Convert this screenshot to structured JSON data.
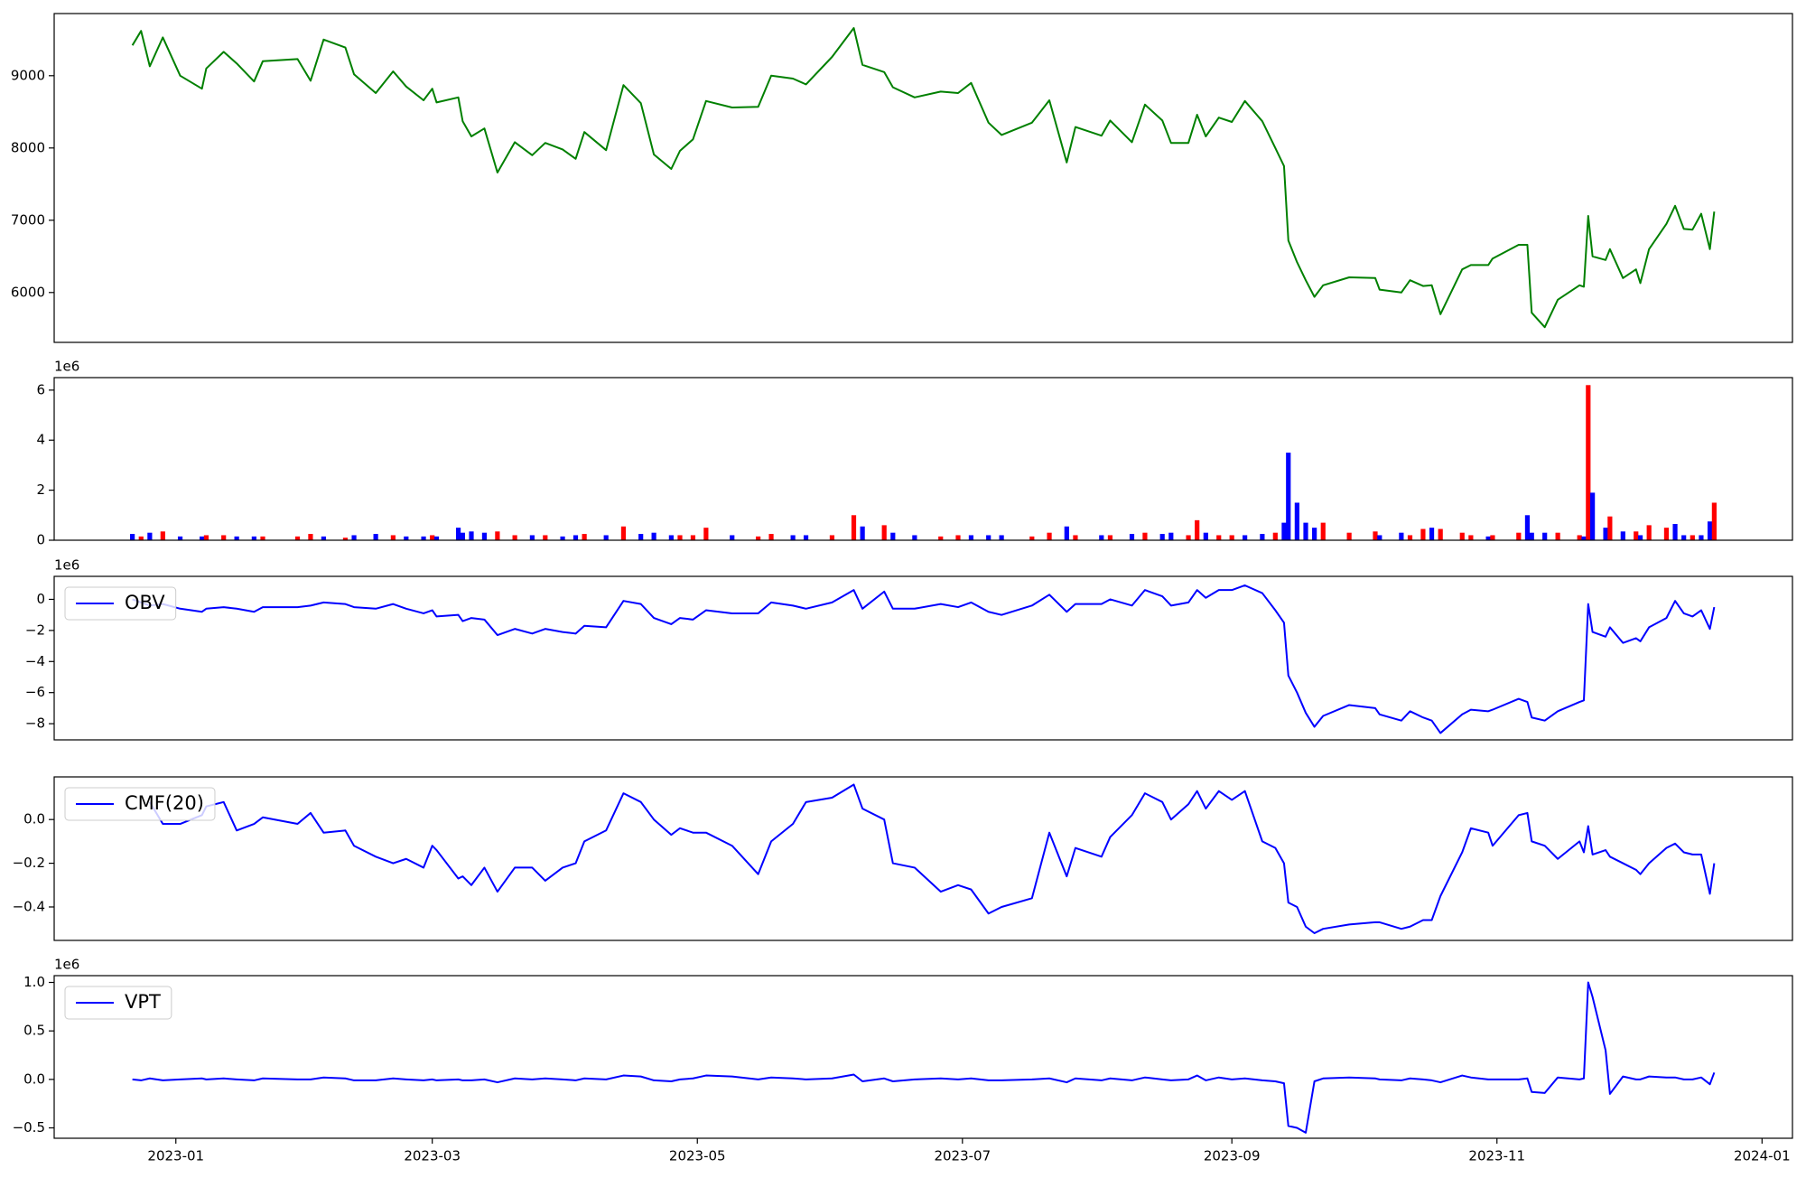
{
  "chart_data": {
    "type": "panels",
    "x": [
      "2022-12-22",
      "2022-12-24",
      "2022-12-26",
      "2022-12-29",
      "2023-01-02",
      "2023-01-07",
      "2023-01-08",
      "2023-01-12",
      "2023-01-15",
      "2023-01-19",
      "2023-01-21",
      "2023-01-29",
      "2023-02-01",
      "2023-02-04",
      "2023-02-09",
      "2023-02-11",
      "2023-02-16",
      "2023-02-20",
      "2023-02-23",
      "2023-02-27",
      "2023-03-01",
      "2023-03-02",
      "2023-03-07",
      "2023-03-08",
      "2023-03-10",
      "2023-03-13",
      "2023-03-16",
      "2023-03-20",
      "2023-03-24",
      "2023-03-27",
      "2023-03-31",
      "2023-04-03",
      "2023-04-05",
      "2023-04-10",
      "2023-04-14",
      "2023-04-18",
      "2023-04-21",
      "2023-04-25",
      "2023-04-27",
      "2023-04-30",
      "2023-05-03",
      "2023-05-09",
      "2023-05-15",
      "2023-05-18",
      "2023-05-23",
      "2023-05-26",
      "2023-06-01",
      "2023-06-06",
      "2023-06-08",
      "2023-06-13",
      "2023-06-15",
      "2023-06-20",
      "2023-06-26",
      "2023-06-30",
      "2023-07-03",
      "2023-07-07",
      "2023-07-10",
      "2023-07-17",
      "2023-07-21",
      "2023-07-25",
      "2023-07-27",
      "2023-08-02",
      "2023-08-04",
      "2023-08-09",
      "2023-08-12",
      "2023-08-16",
      "2023-08-18",
      "2023-08-22",
      "2023-08-24",
      "2023-08-26",
      "2023-08-29",
      "2023-09-01",
      "2023-09-04",
      "2023-09-08",
      "2023-09-11",
      "2023-09-13",
      "2023-09-14",
      "2023-09-16",
      "2023-09-18",
      "2023-09-20",
      "2023-09-22",
      "2023-09-28",
      "2023-10-04",
      "2023-10-05",
      "2023-10-10",
      "2023-10-12",
      "2023-10-15",
      "2023-10-17",
      "2023-10-19",
      "2023-10-24",
      "2023-10-26",
      "2023-10-30",
      "2023-10-31",
      "2023-11-06",
      "2023-11-08",
      "2023-11-09",
      "2023-11-12",
      "2023-11-15",
      "2023-11-20",
      "2023-11-21",
      "2023-11-22",
      "2023-11-23",
      "2023-11-26",
      "2023-11-27",
      "2023-11-30",
      "2023-12-03",
      "2023-12-04",
      "2023-12-06",
      "2023-12-10",
      "2023-12-12",
      "2023-12-14",
      "2023-12-16",
      "2023-12-18",
      "2023-12-20",
      "2023-12-21"
    ],
    "xlim": [
      "2022-12-04",
      "2024-01-08"
    ],
    "xticks": [
      "2023-01",
      "2023-03",
      "2023-05",
      "2023-07",
      "2023-09",
      "2023-11",
      "2024-01"
    ],
    "panels": [
      {
        "type": "line",
        "ylim": [
          5310,
          9860
        ],
        "yticks": [
          6000,
          7000,
          8000,
          9000
        ],
        "series": [
          {
            "color": "green",
            "values": [
              9420,
              9620,
              9130,
              9530,
              9000,
              8820,
              9100,
              9330,
              9170,
              8920,
              9200,
              9230,
              8930,
              9500,
              9390,
              9020,
              8760,
              9060,
              8850,
              8660,
              8820,
              8630,
              8700,
              8370,
              8160,
              8270,
              7660,
              8080,
              7900,
              8070,
              7980,
              7850,
              8220,
              7970,
              8870,
              8620,
              7910,
              7710,
              7960,
              8120,
              8650,
              8560,
              8570,
              9000,
              8960,
              8880,
              9260,
              9660,
              9150,
              9050,
              8840,
              8700,
              8780,
              8760,
              8900,
              8350,
              8180,
              8350,
              8660,
              7800,
              8290,
              8170,
              8380,
              8080,
              8600,
              8380,
              8070,
              8070,
              8460,
              8160,
              8420,
              8360,
              8650,
              8370,
              8000,
              7750,
              6720,
              6420,
              6170,
              5940,
              6100,
              6210,
              6200,
              6040,
              6000,
              6170,
              6090,
              6100,
              5700,
              6320,
              6380,
              6380,
              6470,
              6660,
              6660,
              5720,
              5520,
              5900,
              6100,
              6080,
              7060,
              6500,
              6450,
              6600,
              6200,
              6320,
              6130,
              6600,
              6950,
              7200,
              6880,
              6870,
              7090,
              6600,
              7120
            ]
          }
        ]
      },
      {
        "type": "bar",
        "offset_label": "1e6",
        "ylim": [
          0,
          6.5
        ],
        "yticks": [
          0,
          2,
          4,
          6
        ],
        "values": [
          0.25,
          0.15,
          0.3,
          0.35,
          0.15,
          0.15,
          0.2,
          0.2,
          0.15,
          0.15,
          0.15,
          0.15,
          0.25,
          0.15,
          0.1,
          0.2,
          0.25,
          0.2,
          0.15,
          0.15,
          0.2,
          0.15,
          0.5,
          0.3,
          0.35,
          0.3,
          0.35,
          0.2,
          0.2,
          0.2,
          0.15,
          0.2,
          0.25,
          0.2,
          0.55,
          0.25,
          0.3,
          0.2,
          0.2,
          0.2,
          0.5,
          0.2,
          0.15,
          0.25,
          0.2,
          0.2,
          0.2,
          1.0,
          0.55,
          0.6,
          0.3,
          0.2,
          0.15,
          0.2,
          0.2,
          0.2,
          0.2,
          0.15,
          0.3,
          0.55,
          0.2,
          0.2,
          0.2,
          0.25,
          0.3,
          0.25,
          0.3,
          0.2,
          0.8,
          0.3,
          0.2,
          0.2,
          0.2,
          0.25,
          0.3,
          0.7,
          3.5,
          1.5,
          0.7,
          0.5,
          0.7,
          0.3,
          0.35,
          0.2,
          0.3,
          0.2,
          0.45,
          0.5,
          0.45,
          0.3,
          0.2,
          0.15,
          0.2,
          0.3,
          1.0,
          0.3,
          0.3,
          0.3,
          0.2,
          0.15,
          6.2,
          1.9,
          0.5,
          0.95,
          0.35,
          0.35,
          0.2,
          0.6,
          0.5,
          0.65,
          0.2,
          0.2,
          0.2,
          0.75,
          1.5
        ],
        "colors": [
          "blue",
          "red",
          "blue",
          "red",
          "blue",
          "blue",
          "red",
          "red",
          "blue",
          "blue",
          "red",
          "red",
          "red",
          "blue",
          "red",
          "blue",
          "blue",
          "red",
          "blue",
          "blue",
          "red",
          "blue",
          "blue",
          "blue",
          "blue",
          "blue",
          "red",
          "red",
          "blue",
          "red",
          "blue",
          "blue",
          "red",
          "blue",
          "red",
          "blue",
          "blue",
          "blue",
          "red",
          "red",
          "red",
          "blue",
          "red",
          "red",
          "blue",
          "blue",
          "red",
          "red",
          "blue",
          "red",
          "blue",
          "blue",
          "red",
          "red",
          "blue",
          "blue",
          "blue",
          "red",
          "red",
          "blue",
          "red",
          "blue",
          "red",
          "blue",
          "red",
          "blue",
          "blue",
          "red",
          "red",
          "blue",
          "red",
          "red",
          "blue",
          "blue",
          "red",
          "blue",
          "blue",
          "blue",
          "blue",
          "blue",
          "red",
          "red",
          "red",
          "blue",
          "blue",
          "red",
          "red",
          "blue",
          "red",
          "red",
          "red",
          "blue",
          "red",
          "red",
          "blue",
          "blue",
          "blue",
          "red",
          "red",
          "blue",
          "red",
          "blue",
          "blue",
          "red",
          "blue",
          "red",
          "blue",
          "red",
          "red",
          "blue",
          "blue",
          "red",
          "blue",
          "blue",
          "red"
        ]
      },
      {
        "type": "line",
        "offset_label": "1e6",
        "legend": "upper left",
        "ylim": [
          -9.04,
          1.48
        ],
        "yticks": [
          {
            "value": -8,
            "label": "−8"
          },
          {
            "value": -6,
            "label": "−6"
          },
          {
            "value": -4,
            "label": "−4"
          },
          {
            "value": -2,
            "label": "−2"
          },
          0
        ],
        "series": [
          {
            "name": "OBV",
            "color": "blue",
            "values": [
              0,
              -0.2,
              -0.4,
              -0.3,
              -0.6,
              -0.8,
              -0.6,
              -0.5,
              -0.6,
              -0.8,
              -0.5,
              -0.5,
              -0.4,
              -0.2,
              -0.3,
              -0.5,
              -0.6,
              -0.3,
              -0.6,
              -0.9,
              -0.7,
              -1.1,
              -1.0,
              -1.4,
              -1.2,
              -1.3,
              -2.3,
              -1.9,
              -2.2,
              -1.9,
              -2.1,
              -2.2,
              -1.7,
              -1.8,
              -0.1,
              -0.3,
              -1.2,
              -1.6,
              -1.2,
              -1.3,
              -0.7,
              -0.9,
              -0.9,
              -0.2,
              -0.4,
              -0.6,
              -0.2,
              0.6,
              -0.6,
              0.5,
              -0.6,
              -0.6,
              -0.3,
              -0.5,
              -0.2,
              -0.8,
              -1.0,
              -0.4,
              0.3,
              -0.8,
              -0.3,
              -0.3,
              0.0,
              -0.4,
              0.6,
              0.2,
              -0.4,
              -0.2,
              0.6,
              0.1,
              0.6,
              0.6,
              0.9,
              0.4,
              -0.7,
              -1.5,
              -4.9,
              -6.0,
              -7.3,
              -8.2,
              -7.5,
              -6.8,
              -7.0,
              -7.4,
              -7.8,
              -7.2,
              -7.6,
              -7.8,
              -8.6,
              -7.4,
              -7.1,
              -7.2,
              -7.1,
              -6.4,
              -6.6,
              -7.6,
              -7.8,
              -7.2,
              -6.6,
              -6.5,
              -0.3,
              -2.1,
              -2.4,
              -1.8,
              -2.8,
              -2.5,
              -2.7,
              -1.8,
              -1.2,
              -0.1,
              -0.9,
              -1.1,
              -0.7,
              -1.9,
              -0.5
            ]
          }
        ]
      },
      {
        "type": "line",
        "legend": "upper left",
        "ylim": [
          -0.553,
          0.195
        ],
        "yticks": [
          {
            "value": -0.4,
            "label": "−0.4"
          },
          {
            "value": -0.2,
            "label": "−0.2"
          },
          {
            "value": 0,
            "label": "0.0"
          }
        ],
        "series": [
          {
            "name": "CMF(20)",
            "color": "blue",
            "values": [
              null,
              null,
              0.08,
              -0.02,
              -0.02,
              0.02,
              0.06,
              0.08,
              -0.05,
              -0.02,
              0.01,
              -0.02,
              0.03,
              -0.06,
              -0.05,
              -0.12,
              -0.17,
              -0.2,
              -0.18,
              -0.22,
              -0.12,
              -0.14,
              -0.27,
              -0.26,
              -0.3,
              -0.22,
              -0.33,
              -0.22,
              -0.22,
              -0.28,
              -0.22,
              -0.2,
              -0.1,
              -0.05,
              0.12,
              0.08,
              0.0,
              -0.07,
              -0.04,
              -0.06,
              -0.06,
              -0.12,
              -0.25,
              -0.1,
              -0.02,
              0.08,
              0.1,
              0.16,
              0.05,
              0.0,
              -0.2,
              -0.22,
              -0.33,
              -0.3,
              -0.32,
              -0.43,
              -0.4,
              -0.36,
              -0.06,
              -0.26,
              -0.13,
              -0.17,
              -0.08,
              0.02,
              0.12,
              0.08,
              0.0,
              0.07,
              0.13,
              0.05,
              0.13,
              0.09,
              0.13,
              -0.1,
              -0.13,
              -0.2,
              -0.38,
              -0.4,
              -0.49,
              -0.52,
              -0.5,
              -0.48,
              -0.47,
              -0.47,
              -0.5,
              -0.49,
              -0.46,
              -0.46,
              -0.35,
              -0.15,
              -0.04,
              -0.06,
              -0.12,
              0.02,
              0.03,
              -0.1,
              -0.12,
              -0.18,
              -0.1,
              -0.15,
              -0.03,
              -0.16,
              -0.14,
              -0.17,
              -0.2,
              -0.23,
              -0.25,
              -0.2,
              -0.13,
              -0.11,
              -0.15,
              -0.16,
              -0.16,
              -0.34,
              -0.2
            ]
          }
        ]
      },
      {
        "type": "line",
        "offset_label": "1e6",
        "legend": "upper left",
        "ylim": [
          -0.607,
          1.07
        ],
        "yticks": [
          {
            "value": -0.5,
            "label": "−0.5"
          },
          {
            "value": 0,
            "label": "0.0"
          },
          0.5,
          {
            "value": 1,
            "label": "1.0"
          }
        ],
        "series": [
          {
            "name": "VPT",
            "color": "blue",
            "values": [
              0,
              -0.01,
              0.01,
              -0.01,
              0,
              0.01,
              0,
              0.01,
              0,
              -0.01,
              0.01,
              0,
              0,
              0.02,
              0.01,
              -0.01,
              -0.01,
              0.01,
              0,
              -0.01,
              0,
              -0.01,
              0,
              -0.01,
              -0.01,
              0,
              -0.03,
              0.01,
              0,
              0.01,
              0,
              -0.01,
              0.01,
              0,
              0.04,
              0.03,
              -0.01,
              -0.02,
              0,
              0.01,
              0.04,
              0.03,
              0,
              0.02,
              0.01,
              0,
              0.01,
              0.05,
              -0.02,
              0.01,
              -0.02,
              0,
              0.01,
              0,
              0.01,
              -0.01,
              -0.01,
              0,
              0.01,
              -0.03,
              0.01,
              -0.01,
              0.01,
              -0.01,
              0.02,
              0,
              -0.01,
              0,
              0.04,
              -0.01,
              0.02,
              0,
              0.01,
              -0.01,
              -0.02,
              -0.04,
              -0.48,
              -0.5,
              -0.55,
              -0.02,
              0.01,
              0.02,
              0.01,
              0,
              -0.01,
              0.01,
              0,
              -0.01,
              -0.03,
              0.04,
              0.02,
              0,
              0,
              0,
              0.01,
              -0.13,
              -0.14,
              0.02,
              0,
              0.01,
              1.0,
              0.85,
              0.3,
              -0.15,
              0.03,
              0,
              0,
              0.03,
              0.02,
              0.02,
              0,
              0,
              0.02,
              -0.05,
              0.07
            ]
          }
        ]
      }
    ]
  }
}
